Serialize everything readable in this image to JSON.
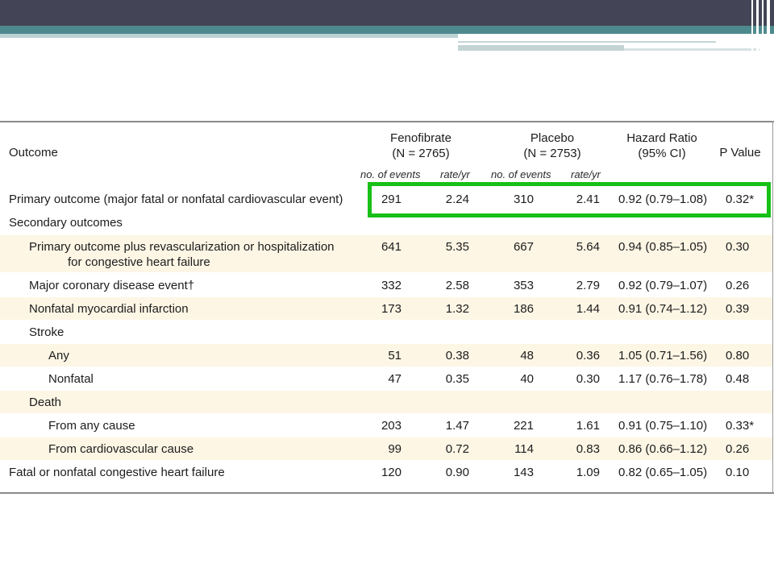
{
  "header": {
    "outcome": "Outcome",
    "fenofibrate": "Fenofibrate",
    "fenofibrate_n": "(N = 2765)",
    "placebo": "Placebo",
    "placebo_n": "(N = 2753)",
    "hazard_ratio": "Hazard Ratio",
    "hazard_ci": "(95% CI)",
    "p_value": "P Value",
    "sub_events_1": "no. of events",
    "sub_rate_1": "rate/yr",
    "sub_events_2": "no. of events",
    "sub_rate_2": "rate/yr"
  },
  "rows": [
    {
      "label": "Primary outcome (major fatal or nonfatal cardiovascular event)",
      "fe": "291",
      "fr": "2.24",
      "pe": "310",
      "pr": "2.41",
      "hr": "0.92 (0.79–1.08)",
      "p": "0.32*"
    },
    {
      "label": "Secondary outcomes"
    },
    {
      "label": "Primary outcome plus revascularization or hospitalization",
      "label2": "for congestive heart failure",
      "fe": "641",
      "fr": "5.35",
      "pe": "667",
      "pr": "5.64",
      "hr": "0.94 (0.85–1.05)",
      "p": "0.30"
    },
    {
      "label": "Major coronary disease event†",
      "fe": "332",
      "fr": "2.58",
      "pe": "353",
      "pr": "2.79",
      "hr": "0.92 (0.79–1.07)",
      "p": "0.26"
    },
    {
      "label": "Nonfatal myocardial infarction",
      "fe": "173",
      "fr": "1.32",
      "pe": "186",
      "pr": "1.44",
      "hr": "0.91 (0.74–1.12)",
      "p": "0.39"
    },
    {
      "label": "Stroke"
    },
    {
      "label": "Any",
      "fe": "51",
      "fr": "0.38",
      "pe": "48",
      "pr": "0.36",
      "hr": "1.05 (0.71–1.56)",
      "p": "0.80"
    },
    {
      "label": "Nonfatal",
      "fe": "47",
      "fr": "0.35",
      "pe": "40",
      "pr": "0.30",
      "hr": "1.17 (0.76–1.78)",
      "p": "0.48"
    },
    {
      "label": "Death"
    },
    {
      "label": "From any cause",
      "fe": "203",
      "fr": "1.47",
      "pe": "221",
      "pr": "1.61",
      "hr": "0.91 (0.75–1.10)",
      "p": "0.33*"
    },
    {
      "label": "From cardiovascular cause",
      "fe": "99",
      "fr": "0.72",
      "pe": "114",
      "pr": "0.83",
      "hr": "0.86 (0.66–1.12)",
      "p": "0.26"
    },
    {
      "label": "Fatal or nonfatal congestive heart failure",
      "fe": "120",
      "fr": "0.90",
      "pe": "143",
      "pr": "1.09",
      "hr": "0.82 (0.65–1.05)",
      "p": "0.10"
    }
  ],
  "colors": {
    "header_band": "#434556",
    "accent_band": "#4e8a8d",
    "row_shade": "#fdf6e5",
    "highlight_box": "#17c017"
  }
}
